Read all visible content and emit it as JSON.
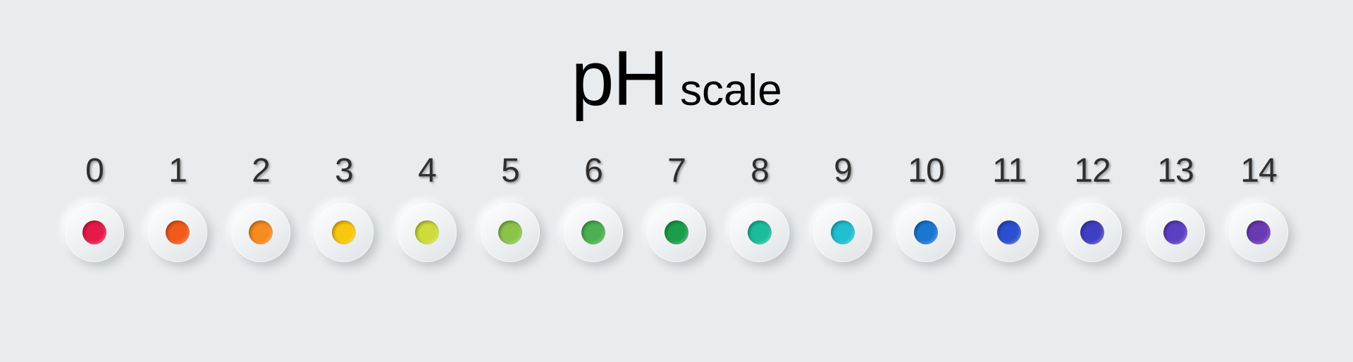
{
  "background_color": "#e8ecef",
  "title": {
    "main": "pH",
    "sub": "scale",
    "main_fontsize": 110,
    "sub_fontsize": 62,
    "color": "#000000"
  },
  "number_style": {
    "fontsize": 48,
    "color": "#2f2f2f",
    "shadow": "2px 2px 3px rgba(0,0,0,0.35)"
  },
  "knob_style": {
    "diameter": 84,
    "dot_diameter": 34,
    "bg_gradient_from": "#ffffff",
    "bg_gradient_to": "#dfe3e6"
  },
  "scale": {
    "type": "indicator-row",
    "items": [
      {
        "label": "0",
        "color": "#e61948"
      },
      {
        "label": "1",
        "color": "#f25a1b"
      },
      {
        "label": "2",
        "color": "#f68b1f"
      },
      {
        "label": "3",
        "color": "#f9c80e"
      },
      {
        "label": "4",
        "color": "#cddc39"
      },
      {
        "label": "5",
        "color": "#8bc34a"
      },
      {
        "label": "6",
        "color": "#4caf50"
      },
      {
        "label": "7",
        "color": "#1b9e4b"
      },
      {
        "label": "8",
        "color": "#1abc9c"
      },
      {
        "label": "9",
        "color": "#1fbfd1"
      },
      {
        "label": "10",
        "color": "#1976d2"
      },
      {
        "label": "11",
        "color": "#2a4fd0"
      },
      {
        "label": "12",
        "color": "#3f3fc4"
      },
      {
        "label": "13",
        "color": "#5b3fc4"
      },
      {
        "label": "14",
        "color": "#6a3ab2"
      }
    ]
  }
}
